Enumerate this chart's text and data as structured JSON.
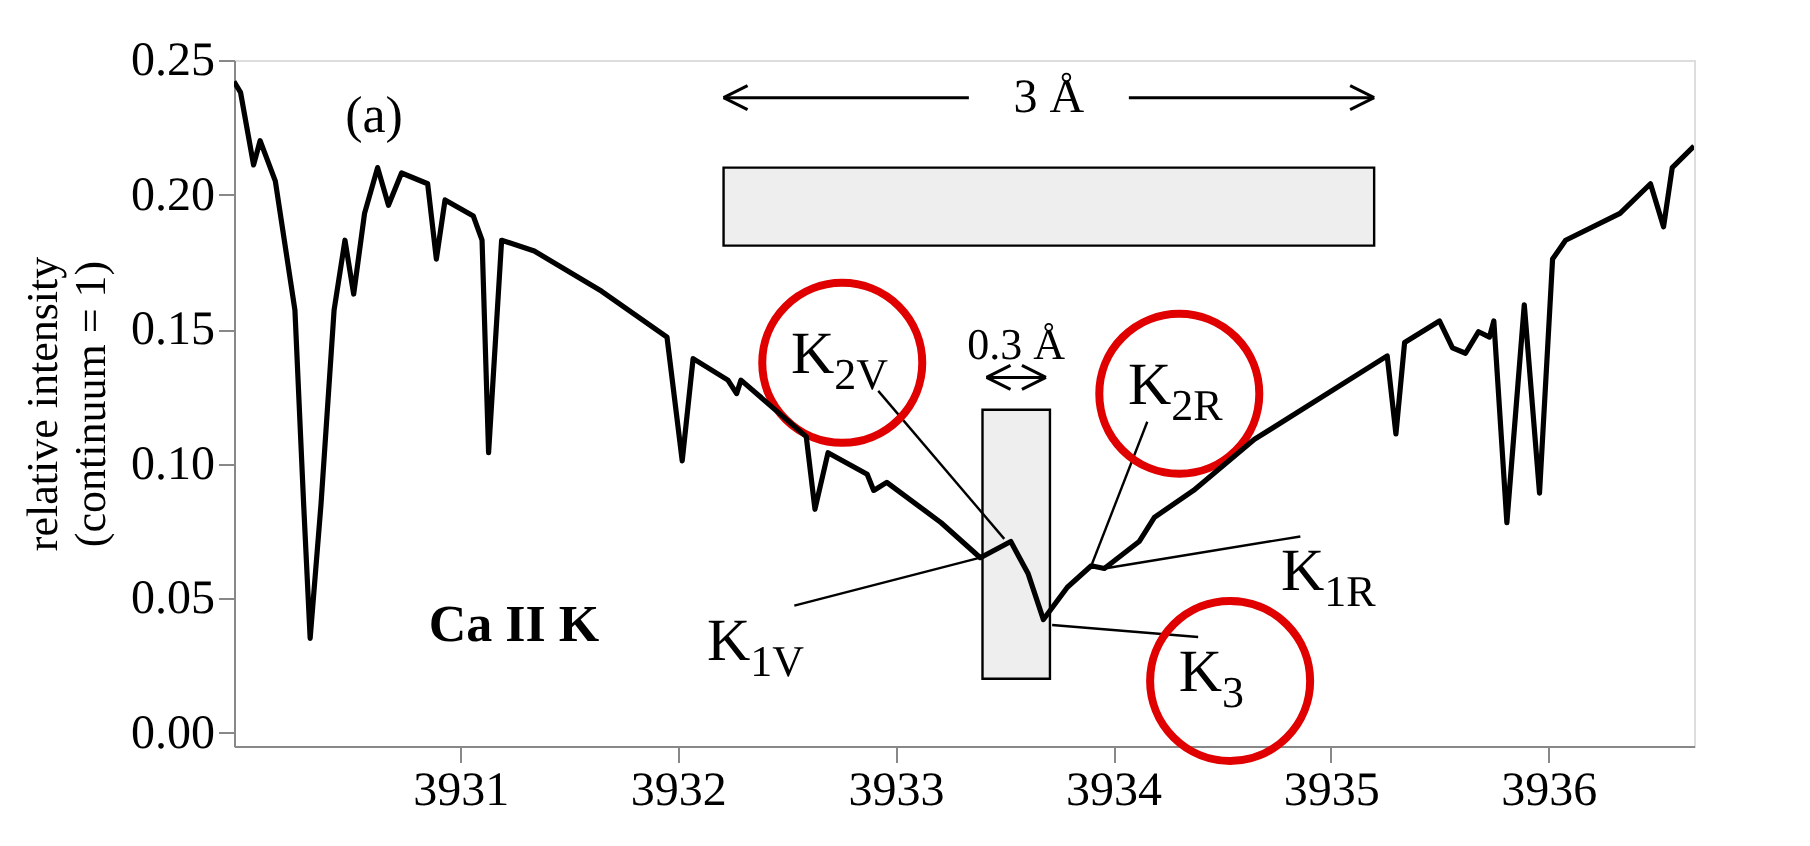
{
  "chart_data": {
    "type": "line",
    "ylabel": "relative intensity\n(continuum = 1)",
    "x": [
      3929.96,
      3929.99,
      3930.05,
      3930.08,
      3930.15,
      3930.24,
      3930.28,
      3930.31,
      3930.36,
      3930.42,
      3930.47,
      3930.51,
      3930.56,
      3930.62,
      3930.67,
      3930.73,
      3930.85,
      3930.89,
      3930.93,
      3931.06,
      3931.1,
      3931.13,
      3931.19,
      3931.34,
      3931.65,
      3931.95,
      3932.02,
      3932.07,
      3932.23,
      3932.27,
      3932.29,
      3932.59,
      3932.63,
      3932.69,
      3932.87,
      3932.9,
      3932.96,
      3933.21,
      3933.39,
      3933.53,
      3933.61,
      3933.68,
      3933.79,
      3933.9,
      3933.96,
      3934.12,
      3934.19,
      3934.37,
      3934.65,
      3935.26,
      3935.3,
      3935.34,
      3935.5,
      3935.56,
      3935.62,
      3935.68,
      3935.73,
      3935.75,
      3935.81,
      3935.89,
      3935.96,
      3936.02,
      3936.08,
      3936.33,
      3936.47,
      3936.53,
      3936.57,
      3936.67
    ],
    "series": [
      {
        "color": "#000000",
        "values": [
          0.242,
          0.238,
          0.211,
          0.22,
          0.205,
          0.157,
          0.085,
          0.035,
          0.085,
          0.157,
          0.183,
          0.163,
          0.193,
          0.21,
          0.196,
          0.208,
          0.204,
          0.176,
          0.198,
          0.192,
          0.183,
          0.104,
          0.183,
          0.179,
          0.164,
          0.147,
          0.101,
          0.139,
          0.131,
          0.126,
          0.131,
          0.11,
          0.083,
          0.104,
          0.096,
          0.09,
          0.093,
          0.078,
          0.065,
          0.071,
          0.059,
          0.042,
          0.054,
          0.062,
          0.061,
          0.071,
          0.08,
          0.09,
          0.109,
          0.14,
          0.111,
          0.145,
          0.153,
          0.143,
          0.141,
          0.149,
          0.147,
          0.153,
          0.078,
          0.159,
          0.089,
          0.176,
          0.183,
          0.193,
          0.204,
          0.188,
          0.21,
          0.218
        ]
      }
    ],
    "xlim": [
      3929.96,
      3936.67
    ],
    "ylim": [
      -0.005,
      0.25
    ],
    "xticks": [
      3931,
      3932,
      3933,
      3934,
      3935,
      3936
    ],
    "yticks": [
      {
        "value": 0,
        "label": "0.00"
      },
      {
        "value": 0.05,
        "label": "0.05"
      },
      {
        "value": 0.1,
        "label": "0.10"
      },
      {
        "value": 0.15,
        "label": "0.15"
      },
      {
        "value": 0.2,
        "label": "0.20"
      },
      {
        "value": 0.25,
        "label": "0.25"
      }
    ],
    "grid": false,
    "bands": [
      {
        "axis": "x",
        "from": 3932.21,
        "to": 3935.2,
        "label": "3 Å"
      },
      {
        "axis": "x",
        "from": 3933.4,
        "to": 3933.71,
        "label": "0.3 Å"
      }
    ],
    "annotations": [
      "(a)",
      "Ca II K",
      {
        "text": "K$_{2V}$",
        "x": 3933.5,
        "y": 0.072
      },
      {
        "text": "K$_{1V}$",
        "x": 3933.39,
        "y": 0.065
      },
      {
        "text": "K$_{2R}$",
        "x": 3933.9,
        "y": 0.062
      },
      {
        "text": "K$_{1R}$",
        "x": 3933.96,
        "y": 0.061
      },
      {
        "text": "K$_{3}$",
        "x": 3933.72,
        "y": 0.04
      }
    ]
  }
}
